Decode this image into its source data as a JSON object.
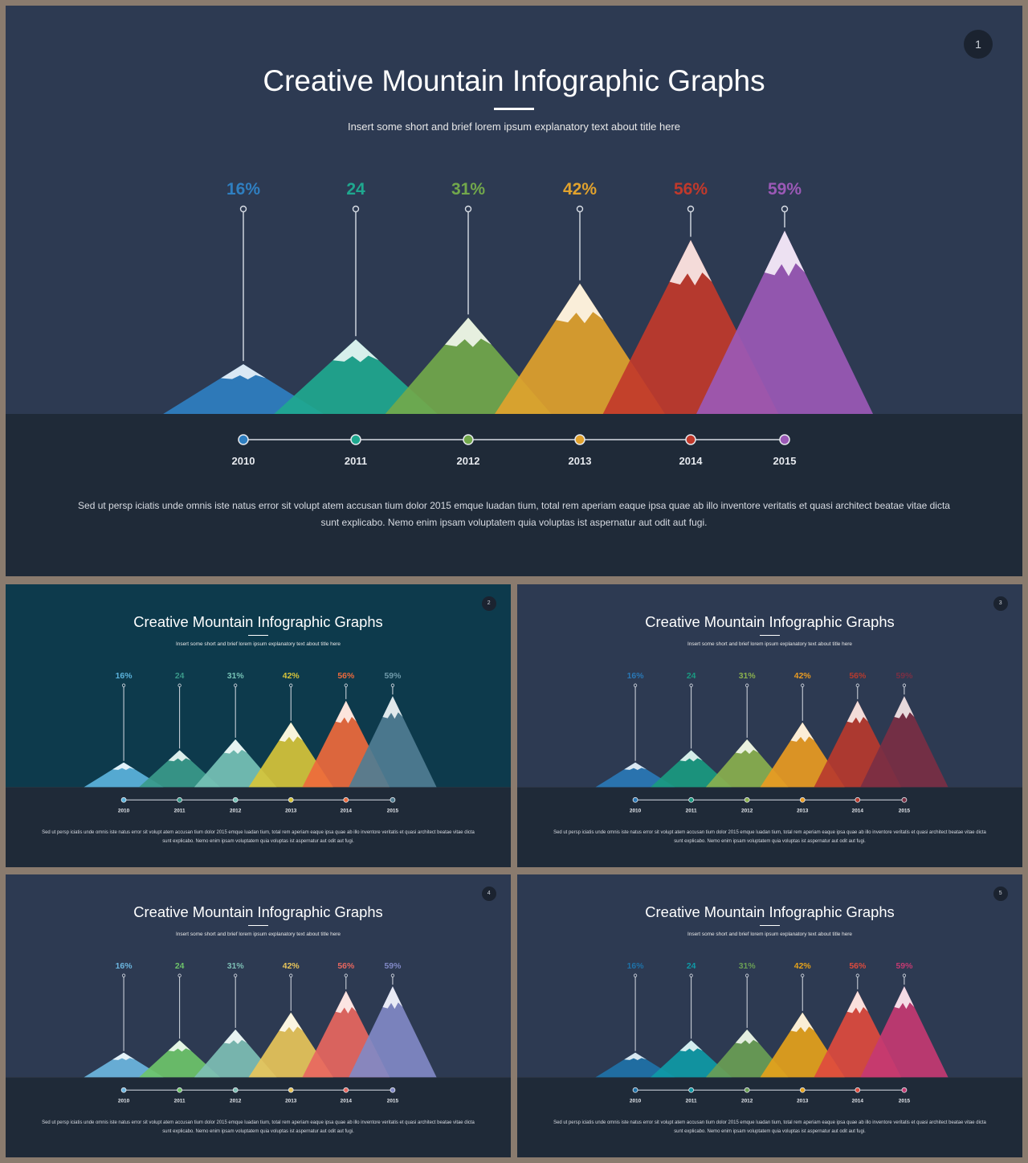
{
  "slides": [
    {
      "page": "1",
      "title": "Creative Mountain Infographic Graphs",
      "subtitle": "Insert some short and brief lorem ipsum explanatory text about title here",
      "description": "Sed ut persp  iciatis unde omnis  iste natus error  sit volupt atem accusan tium dolor 2015 emque luadan tium,  total  rem aperiam eaque ipsa quae ab illo inventore  veritatis  et quasi architect  beatae vitae dicta sunt explicabo.  Nemo enim ipsam voluptatem  quia voluptas ist aspernatur  aut odit  aut fugi.",
      "theme": {
        "top_bg": "#2d3a52",
        "bottom_bg": "#1f2a38"
      },
      "colors": [
        "#2f7fc1",
        "#1fa88f",
        "#72a84b",
        "#e1a22d",
        "#c1392b",
        "#9b59b6"
      ],
      "label_colors": [
        "#2f7fc1",
        "#1fa88f",
        "#72a84b",
        "#e1a22d",
        "#c1392b",
        "#9b59b6"
      ]
    },
    {
      "page": "2",
      "title": "Creative Mountain Infographic Graphs",
      "subtitle": "Insert some short and brief lorem ipsum explanatory text about title here",
      "description": "Sed ut persp  iciatis unde omnis  iste natus error  sit volupt atem accusan tium dolor 2015 emque luadan tium,  total  rem aperiam eaque ipsa quae ab illo inventore  veritatis  et quasi architect  beatae vitae dicta sunt explicabo.  Nemo enim ipsam voluptatem  quia voluptas ist aspernatur  aut odit  aut fugi.",
      "theme": {
        "top_bg": "#0d3a4c",
        "bottom_bg": "#1f2a38"
      },
      "colors": [
        "#5bb3dc",
        "#3a9a8a",
        "#76c2b6",
        "#d6c43a",
        "#ee6a3c",
        "#4f7d92"
      ],
      "label_colors": [
        "#5bb3dc",
        "#3a9a8a",
        "#76c2b6",
        "#d6c43a",
        "#ee6a3c",
        "#6f9aaa"
      ]
    },
    {
      "page": "3",
      "title": "Creative Mountain Infographic Graphs",
      "subtitle": "Insert some short and brief lorem ipsum explanatory text about title here",
      "description": "Sed ut persp  iciatis unde omnis  iste natus error  sit volupt atem accusan tium dolor 2015 emque luadan tium,  total  rem aperiam eaque ipsa quae ab illo inventore  veritatis  et quasi architect  beatae vitae dicta sunt explicabo.  Nemo enim ipsam voluptatem  quia voluptas ist aspernatur  aut odit  aut fugi.",
      "theme": {
        "top_bg": "#2d3a52",
        "bottom_bg": "#1f2a38"
      },
      "colors": [
        "#2a78b6",
        "#1a9a80",
        "#8ab04e",
        "#e99b22",
        "#b73a2e",
        "#7a2f44"
      ],
      "label_colors": [
        "#2a78b6",
        "#1a9a80",
        "#8ab04e",
        "#e99b22",
        "#b73a2e",
        "#7a2f44"
      ]
    },
    {
      "page": "4",
      "title": "Creative Mountain Infographic Graphs",
      "subtitle": "Insert some short and brief lorem ipsum explanatory text about title here",
      "description": "Sed ut persp  iciatis unde omnis  iste natus error  sit volupt atem accusan tium dolor 2015 emque luadan tium,  total  rem aperiam eaque ipsa quae ab illo inventore  veritatis  et quasi architect  beatae vitae dicta sunt explicabo.  Nemo enim ipsam voluptatem  quia voluptas ist aspernatur  aut odit  aut fugi.",
      "theme": {
        "top_bg": "#2d3a52",
        "bottom_bg": "#1f2a38"
      },
      "colors": [
        "#6cb6e0",
        "#6ec46a",
        "#7ebfb5",
        "#e8c55a",
        "#e8675f",
        "#8189c6"
      ],
      "label_colors": [
        "#6cb6e0",
        "#6ec46a",
        "#7ebfb5",
        "#e8c55a",
        "#e8675f",
        "#8189c6"
      ]
    },
    {
      "page": "5",
      "title": "Creative Mountain Infographic Graphs",
      "subtitle": "Insert some short and brief lorem ipsum explanatory text about title here",
      "description": "Sed ut persp  iciatis unde omnis  iste natus error  sit volupt atem accusan tium dolor 2015 emque luadan tium,  total  rem aperiam eaque ipsa quae ab illo inventore  veritatis  et quasi architect  beatae vitae dicta sunt explicabo.  Nemo enim ipsam voluptatem  quia voluptas ist aspernatur  aut odit  aut fugi.",
      "theme": {
        "top_bg": "#2d3a52",
        "bottom_bg": "#1f2a38"
      },
      "colors": [
        "#1f72a8",
        "#0f9aa6",
        "#6a9e55",
        "#e5a21b",
        "#de4b3e",
        "#c43a72"
      ],
      "label_colors": [
        "#1f72a8",
        "#0f9aa6",
        "#6a9e55",
        "#e5a21b",
        "#de4b3e",
        "#c43a72"
      ]
    }
  ],
  "chart_data": {
    "type": "bar",
    "categories": [
      "2010",
      "2011",
      "2012",
      "2013",
      "2014",
      "2015"
    ],
    "value_labels": [
      "16%",
      "24",
      "31%",
      "42%",
      "56%",
      "59%"
    ],
    "values": [
      16,
      24,
      31,
      42,
      56,
      59
    ],
    "ylim": [
      0,
      59
    ]
  }
}
